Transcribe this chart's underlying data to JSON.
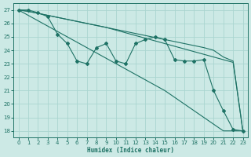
{
  "xlabel": "Humidex (Indice chaleur)",
  "bg_color": "#cce9e5",
  "grid_color": "#aad5d0",
  "line_color": "#1e7265",
  "xlim": [
    -0.5,
    23.5
  ],
  "ylim": [
    17.5,
    27.5
  ],
  "yticks": [
    18,
    19,
    20,
    21,
    22,
    23,
    24,
    25,
    26,
    27
  ],
  "xticks": [
    0,
    1,
    2,
    3,
    4,
    5,
    6,
    7,
    8,
    9,
    10,
    11,
    12,
    13,
    14,
    15,
    16,
    17,
    18,
    19,
    20,
    21,
    22,
    23
  ],
  "line_zigzag": [
    27,
    27,
    26.8,
    26.5,
    25.2,
    24.5,
    23.2,
    23.0,
    24.2,
    24.5,
    23.2,
    23.0,
    24.5,
    24.8,
    25.0,
    24.8,
    23.3,
    23.2,
    23.2,
    23.3,
    21.0,
    19.5,
    18.1,
    18.0
  ],
  "line_diag_steep": [
    27,
    26.6,
    26.2,
    25.8,
    25.4,
    25.0,
    24.6,
    24.2,
    23.8,
    23.4,
    23.0,
    22.6,
    22.2,
    21.8,
    21.4,
    21.0,
    20.5,
    20.0,
    19.5,
    19.0,
    18.5,
    18.0,
    18.0,
    18.0
  ],
  "line_diag_mid": [
    27,
    26.9,
    26.75,
    26.6,
    26.45,
    26.3,
    26.15,
    26.0,
    25.85,
    25.7,
    25.55,
    25.4,
    25.25,
    25.1,
    24.95,
    24.8,
    24.65,
    24.5,
    24.35,
    24.2,
    24.0,
    23.5,
    23.2,
    18.0
  ],
  "line_diag_gentle": [
    27,
    26.9,
    26.75,
    26.6,
    26.45,
    26.3,
    26.15,
    26.0,
    25.85,
    25.7,
    25.5,
    25.3,
    25.1,
    24.9,
    24.7,
    24.5,
    24.3,
    24.1,
    23.9,
    23.7,
    23.5,
    23.3,
    23.1,
    18.0
  ]
}
